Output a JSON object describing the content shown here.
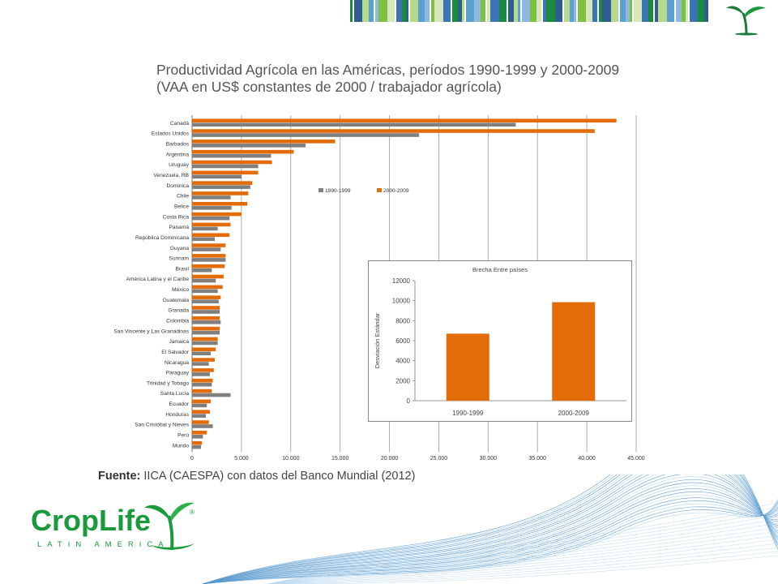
{
  "colors": {
    "series_1990": "#7f7f7f",
    "series_2000": "#e36c09",
    "brand_green": "#1a9a3c",
    "wave_blue": "#1f6fb0"
  },
  "title": {
    "line1": "Productividad Agrícola en las Américas, períodos 1990-1999 y 2000-2009",
    "line2": "(VAA en US$ constantes de 2000 / trabajador agrícola)"
  },
  "source": {
    "label": "Fuente:",
    "text": "IICA (CAESPA) con datos del Banco Mundial (2012)"
  },
  "logo": {
    "text": "CropLife",
    "subtext": "LATIN AMERICA",
    "registered": "®"
  },
  "chart_data": [
    {
      "type": "bar",
      "orientation": "horizontal",
      "categories": [
        "Canadá",
        "Estados Unidos",
        "Barbados",
        "Argentina",
        "Uruguay",
        "Venezuela, RB",
        "Dominica",
        "Chile",
        "Belice",
        "Costa Rica",
        "Panamá",
        "República Dominicana",
        "Guyana",
        "Surinam",
        "Brasil",
        "América Latina y el Caribe",
        "México",
        "Guatemala",
        "Granada",
        "Colombia",
        "San Vincente y Las Granadinas",
        "Jamaica",
        "El Salvador",
        "Nicaragua",
        "Paraguay",
        "Trinidad y Tobago",
        "Santa Lucía",
        "Ecuador",
        "Honduras",
        "San Cristóbal y Nieves",
        "Perú",
        "Mundo"
      ],
      "series": [
        {
          "name": "1990-1999",
          "values": [
            32800,
            23000,
            11500,
            8000,
            6700,
            5000,
            5900,
            3900,
            4000,
            3800,
            2600,
            2300,
            2900,
            3400,
            2000,
            2400,
            2600,
            2700,
            2800,
            2900,
            2800,
            2600,
            1900,
            1700,
            1800,
            2000,
            3900,
            1500,
            1400,
            2100,
            1100,
            900
          ]
        },
        {
          "name": "2000-2009",
          "values": [
            43000,
            40800,
            14500,
            10300,
            8100,
            6700,
            6100,
            5700,
            5600,
            5000,
            3900,
            3800,
            3400,
            3400,
            3300,
            3200,
            3100,
            2900,
            2800,
            2800,
            2800,
            2600,
            2400,
            2300,
            2200,
            2100,
            2000,
            1900,
            1800,
            1700,
            1500,
            1000
          ]
        }
      ],
      "x_ticks": [
        "0",
        "5.000",
        "10.000",
        "15.000",
        "20.000",
        "25.000",
        "30.000",
        "35.000",
        "40.000",
        "45.000"
      ],
      "xlim": [
        0,
        45000
      ],
      "grid": true,
      "legend": "upper-center"
    },
    {
      "type": "bar",
      "title": "Brecha Entre países",
      "ylabel": "Desviación Estándar",
      "categories": [
        "1990-1999",
        "2000-2009"
      ],
      "values": [
        6700,
        9850
      ],
      "y_ticks": [
        "0",
        "2000",
        "4000",
        "6000",
        "8000",
        "10000",
        "12000"
      ],
      "ylim": [
        0,
        12000
      ]
    }
  ]
}
